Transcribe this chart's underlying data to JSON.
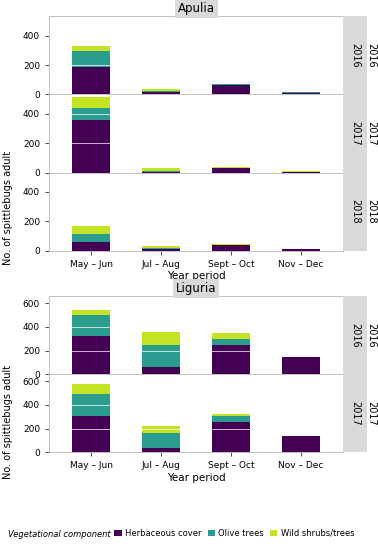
{
  "apulia_title": "Apulia",
  "liguria_title": "Liguria",
  "xlabel": "Year period",
  "ylabel": "No. of spittlebugs adult",
  "categories": [
    "May – Jun",
    "Jul – Aug",
    "Sept – Oct",
    "Nov – Dec"
  ],
  "colors": {
    "herbaceous": "#440154",
    "olive": "#2a9d8f",
    "wild": "#c5e324"
  },
  "apulia": {
    "2016": {
      "herbaceous": [
        185,
        15,
        65,
        12
      ],
      "olive": [
        110,
        12,
        3,
        2
      ],
      "wild": [
        35,
        10,
        2,
        5
      ]
    },
    "2017": {
      "herbaceous": [
        360,
        3,
        30,
        5
      ],
      "olive": [
        75,
        8,
        2,
        1
      ],
      "wild": [
        75,
        20,
        5,
        2
      ]
    },
    "2018": {
      "herbaceous": [
        55,
        8,
        35,
        8
      ],
      "olive": [
        60,
        10,
        5,
        1
      ],
      "wild": [
        50,
        10,
        5,
        1
      ]
    }
  },
  "liguria": {
    "2016": {
      "herbaceous": [
        325,
        65,
        250,
        145
      ],
      "olive": [
        175,
        185,
        50,
        0
      ],
      "wild": [
        40,
        105,
        50,
        0
      ]
    },
    "2017": {
      "herbaceous": [
        305,
        40,
        255,
        135
      ],
      "olive": [
        190,
        125,
        50,
        0
      ],
      "wild": [
        85,
        55,
        20,
        0
      ]
    }
  },
  "apulia_ylim": [
    0,
    530
  ],
  "apulia_yticks": [
    0,
    200,
    400
  ],
  "liguria_ylim": [
    0,
    660
  ],
  "liguria_yticks": [
    0,
    200,
    400,
    600
  ],
  "strip_color": "#d9d9d9",
  "bg_color": "#ffffff",
  "bar_width": 0.55
}
